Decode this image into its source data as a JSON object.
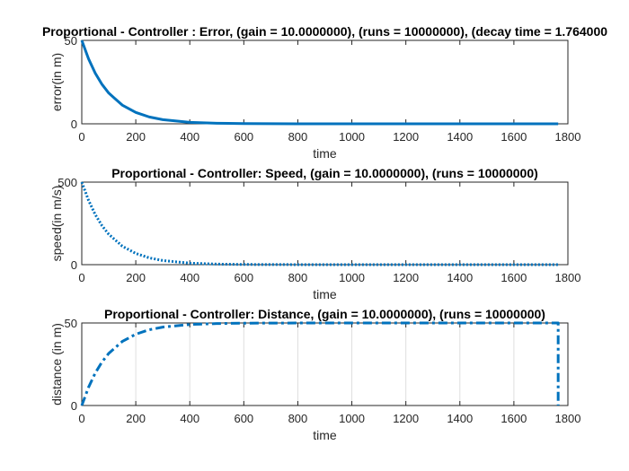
{
  "figure": {
    "line_color": "#0072BD",
    "axes_color": "#262626",
    "grid_color": "#dfdfdf"
  },
  "chart_data": [
    {
      "type": "line",
      "title": "Proportional - Controller : Error, (gain = 10.0000000), (runs = 10000000), (decay time = 1.764000",
      "xlabel": "time",
      "ylabel": "error(in m)",
      "xlim": [
        0,
        1800
      ],
      "ylim": [
        0,
        50
      ],
      "xticks": [
        0,
        200,
        400,
        600,
        800,
        1000,
        1200,
        1400,
        1600,
        1800
      ],
      "yticks": [
        0,
        50
      ],
      "grid": "off",
      "line_style": "solid",
      "series": [
        {
          "x": [
            0,
            25,
            50,
            75,
            100,
            150,
            200,
            250,
            300,
            400,
            500,
            600,
            800,
            1000,
            1200,
            1400,
            1600,
            1764
          ],
          "y": [
            50,
            39,
            30.3,
            23.6,
            18.4,
            11.2,
            6.8,
            4.1,
            2.5,
            0.9,
            0.34,
            0.12,
            0.02,
            0.0,
            0.0,
            0.0,
            0.0,
            0.0
          ]
        }
      ]
    },
    {
      "type": "line",
      "title": "Proportional - Controller: Speed, (gain = 10.0000000), (runs = 10000000)",
      "xlabel": "time",
      "ylabel": "speed(in m/s)",
      "xlim": [
        0,
        1800
      ],
      "ylim": [
        0,
        500
      ],
      "xticks": [
        0,
        200,
        400,
        600,
        800,
        1000,
        1200,
        1400,
        1600,
        1800
      ],
      "yticks": [
        0,
        500
      ],
      "grid": "off",
      "line_style": "dotted",
      "series": [
        {
          "x": [
            0,
            25,
            50,
            75,
            100,
            150,
            200,
            250,
            300,
            400,
            500,
            600,
            800,
            1000,
            1200,
            1400,
            1600,
            1764
          ],
          "y": [
            500,
            390,
            303,
            236,
            184,
            112,
            68,
            41,
            25,
            9,
            3.4,
            1.2,
            0.2,
            0,
            0,
            0,
            0,
            0
          ]
        }
      ]
    },
    {
      "type": "line",
      "title": "Proportional - Controller: Distance, (gain = 10.0000000), (runs = 10000000)",
      "xlabel": "time",
      "ylabel": "distance (in m)",
      "xlim": [
        0,
        1800
      ],
      "ylim": [
        0,
        50
      ],
      "xticks": [
        0,
        200,
        400,
        600,
        800,
        1000,
        1200,
        1400,
        1600,
        1800
      ],
      "yticks": [
        0,
        50
      ],
      "grid": "x",
      "line_style": "dashdot",
      "series": [
        {
          "x": [
            0,
            25,
            50,
            75,
            100,
            150,
            200,
            250,
            300,
            400,
            500,
            600,
            800,
            1000,
            1200,
            1400,
            1600,
            1764,
            1764
          ],
          "y": [
            0,
            11,
            19.7,
            26.4,
            31.6,
            38.8,
            43.2,
            45.9,
            47.5,
            49.1,
            49.66,
            49.88,
            49.98,
            50,
            50,
            50,
            50,
            50,
            0
          ]
        }
      ]
    }
  ]
}
